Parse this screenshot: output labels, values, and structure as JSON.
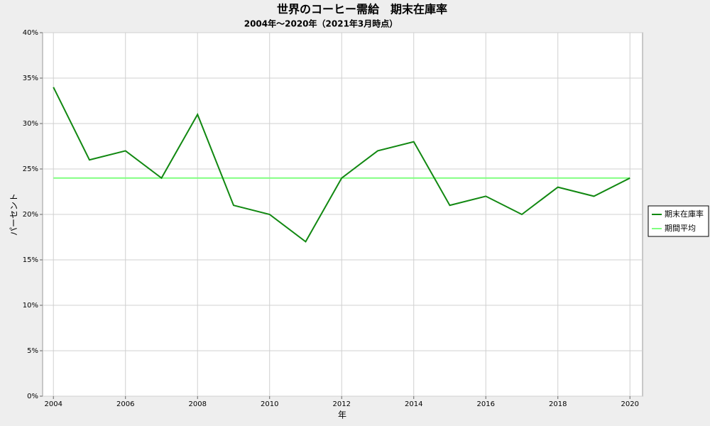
{
  "chart_data": {
    "type": "line",
    "title": "世界のコーヒー需給　期末在庫率",
    "subtitle": "2004年～2020年（2021年3月時点）",
    "x_label": "年",
    "y_label": "パーセント",
    "x": [
      2004,
      2005,
      2006,
      2007,
      2008,
      2009,
      2010,
      2011,
      2012,
      2013,
      2014,
      2015,
      2016,
      2017,
      2018,
      2019,
      2020
    ],
    "series": [
      {
        "name": "期末在庫率",
        "color": "#118811",
        "values": [
          34,
          26,
          27,
          24,
          31,
          21,
          20,
          17,
          24,
          27,
          28,
          21,
          22,
          20,
          23,
          22,
          24
        ]
      },
      {
        "name": "期間平均",
        "color": "#80ff80",
        "values": [
          24,
          24,
          24,
          24,
          24,
          24,
          24,
          24,
          24,
          24,
          24,
          24,
          24,
          24,
          24,
          24,
          24
        ]
      }
    ],
    "xlim": [
      2003.7,
      2020.35
    ],
    "xticks": [
      2004,
      2006,
      2008,
      2010,
      2012,
      2014,
      2016,
      2018,
      2020
    ],
    "ylim": [
      0,
      40
    ],
    "yticks": [
      {
        "value": 0,
        "label": "0%"
      },
      {
        "value": 5,
        "label": "5%"
      },
      {
        "value": 10,
        "label": "10%"
      },
      {
        "value": 15,
        "label": "15%"
      },
      {
        "value": 20,
        "label": "20%"
      },
      {
        "value": 25,
        "label": "25%"
      },
      {
        "value": 30,
        "label": "30%"
      },
      {
        "value": 35,
        "label": "35%"
      },
      {
        "value": 40,
        "label": "40%"
      }
    ],
    "grid": true,
    "legend": "right"
  }
}
